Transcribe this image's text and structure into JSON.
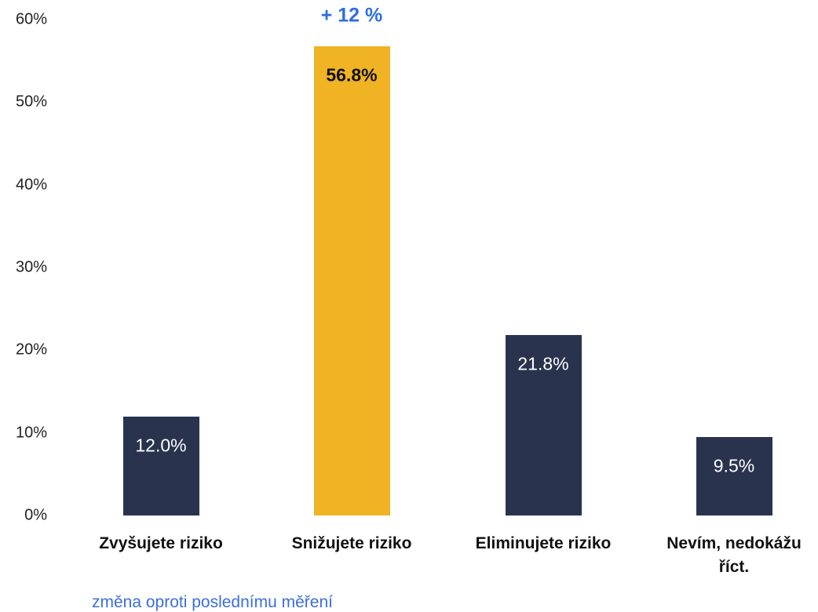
{
  "chart_data": {
    "type": "bar",
    "categories": [
      "Zvyšujete riziko",
      "Snižujete riziko",
      "Eliminujete riziko",
      "Nevím, nedokážu říct."
    ],
    "values": [
      12.0,
      56.8,
      21.8,
      9.5
    ],
    "value_labels": [
      "12.0%",
      "56.8%",
      "21.8%",
      "9.5%"
    ],
    "colors": [
      "#29334e",
      "#f0b323",
      "#29334e",
      "#29334e"
    ],
    "ylim": [
      0,
      60
    ],
    "yticks": [
      {
        "value": 0,
        "label": "0%"
      },
      {
        "value": 10,
        "label": "10%"
      },
      {
        "value": 20,
        "label": "20%"
      },
      {
        "value": 30,
        "label": "30%"
      },
      {
        "value": 40,
        "label": "40%"
      },
      {
        "value": 50,
        "label": "50%"
      },
      {
        "value": 60,
        "label": "60%"
      }
    ],
    "grid": false,
    "annotations": [
      {
        "text": "+ 12 %",
        "category": 1
      }
    ],
    "footnote": "změna oproti poslednímu měření"
  }
}
